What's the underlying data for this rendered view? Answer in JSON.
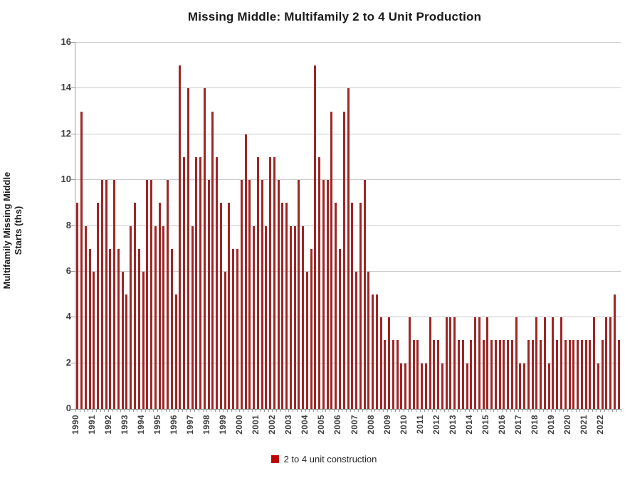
{
  "title": "Missing Middle: Multifamily 2 to 4 Unit Production",
  "y_axis": {
    "title_lines": [
      "Multifamily Missing Middle",
      "Starts (ths)"
    ],
    "ticks": [
      0,
      2,
      4,
      6,
      8,
      10,
      12,
      14,
      16
    ],
    "max": 16
  },
  "legend": {
    "label": "2 to 4 unit construction",
    "marker_color": "#c00000"
  },
  "colors": {
    "bar": "#9f2626",
    "gridline": "#c9c9c9",
    "axis": "#9a9a9a",
    "tick_text": "#3f3f3f",
    "title_text": "#1a1a1a"
  },
  "chart_data": {
    "type": "bar",
    "title": "Missing Middle: Multifamily 2 to 4 Unit Production",
    "xlabel": "",
    "ylabel": "Multifamily Missing Middle Starts (ths)",
    "ylim": [
      0,
      16
    ],
    "y_tick_step": 2,
    "grid": "horizontal",
    "legend_position": "bottom",
    "x_unit": "quarters; first quarter of each year labeled",
    "year_labels": [
      "1990",
      "1991",
      "1992",
      "1993",
      "1994",
      "1995",
      "1996",
      "1997",
      "1998",
      "1999",
      "2000",
      "2001",
      "2002",
      "2003",
      "2004",
      "2005",
      "2006",
      "2007",
      "2008",
      "2009",
      "2010",
      "2011",
      "2012",
      "2013",
      "2014",
      "2015",
      "2016",
      "2017",
      "2018",
      "2019",
      "2020",
      "2021",
      "2022"
    ],
    "series": [
      {
        "name": "2 to 4 unit construction",
        "color": "#9f2626",
        "values": [
          9,
          13,
          8,
          7,
          6,
          9,
          10,
          10,
          7,
          10,
          7,
          6,
          5,
          8,
          9,
          7,
          6,
          10,
          10,
          8,
          9,
          8,
          10,
          7,
          5,
          15,
          11,
          14,
          8,
          11,
          11,
          14,
          10,
          13,
          11,
          9,
          6,
          9,
          7,
          7,
          10,
          12,
          10,
          8,
          11,
          10,
          8,
          11,
          11,
          10,
          9,
          9,
          8,
          8,
          10,
          8,
          6,
          7,
          15,
          11,
          10,
          10,
          13,
          9,
          7,
          13,
          14,
          9,
          6,
          9,
          10,
          6,
          5,
          5,
          4,
          3,
          4,
          3,
          3,
          2,
          2,
          4,
          3,
          3,
          2,
          2,
          4,
          3,
          3,
          2,
          4,
          4,
          4,
          3,
          3,
          2,
          3,
          4,
          4,
          3,
          4,
          3,
          3,
          3,
          3,
          3,
          3,
          4,
          2,
          2,
          3,
          3,
          4,
          3,
          4,
          2,
          4,
          3,
          4,
          3,
          3,
          3,
          3,
          3,
          3,
          3,
          4,
          2,
          3,
          4,
          4,
          5,
          3
        ]
      }
    ]
  }
}
